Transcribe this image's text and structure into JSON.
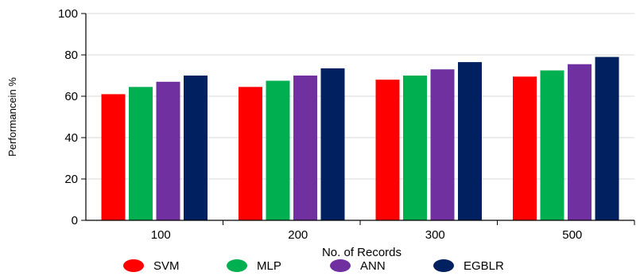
{
  "chart_data": {
    "type": "bar",
    "title": "",
    "xlabel": "No. of Records",
    "ylabel": "Performancein %",
    "categories": [
      "100",
      "200",
      "300",
      "500"
    ],
    "ylim": [
      0,
      100
    ],
    "yticks": [
      0,
      20,
      40,
      60,
      80,
      100
    ],
    "grid": true,
    "legend_position": "bottom",
    "series": [
      {
        "name": "SVM",
        "color": "#ff0000",
        "values": [
          61,
          64.5,
          68,
          69.5
        ]
      },
      {
        "name": "MLP",
        "color": "#00b050",
        "values": [
          64.5,
          67.5,
          70,
          72.5
        ]
      },
      {
        "name": "ANN",
        "color": "#7030a0",
        "values": [
          67,
          70,
          73,
          75.5
        ]
      },
      {
        "name": "EGBLR",
        "color": "#002060",
        "values": [
          70,
          73.5,
          76.5,
          79
        ]
      }
    ]
  }
}
